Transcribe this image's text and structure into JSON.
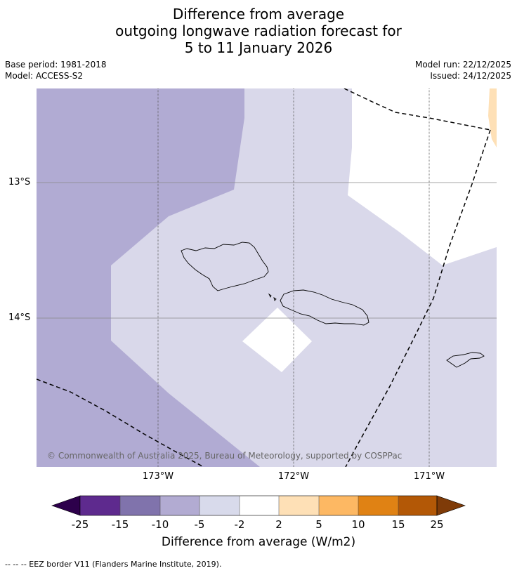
{
  "title": {
    "line1": "Difference from average",
    "line2": "outgoing longwave radiation forecast for",
    "line3": "5 to 11 January 2026"
  },
  "meta": {
    "base_period": "Base period: 1981-2018",
    "model": "Model: ACCESS-S2",
    "model_run": "Model run: 22/12/2025",
    "issued": "Issued: 24/12/2025"
  },
  "map": {
    "lat_labels": [
      "13°S",
      "14°S"
    ],
    "lon_labels": [
      "173°W",
      "172°W",
      "171°W"
    ],
    "copyright": "© Commonwealth of Australia 2025, Bureau of Meteorology, supported by COSPPac",
    "colors": {
      "class_-15_-10": "#b1abd3",
      "class_-5_-2": "#d9d8ea",
      "class_-2_2": "#ffffff",
      "class_2_5": "#fee0b6"
    }
  },
  "colorbar": {
    "ticks": [
      "-25",
      "-15",
      "-10",
      "-5",
      "-2",
      "2",
      "5",
      "10",
      "15",
      "25"
    ],
    "colors": [
      "#2d004b",
      "#5e2a8e",
      "#8073ac",
      "#b2abd2",
      "#d8daeb",
      "#ffffff",
      "#fee0b6",
      "#fdb863",
      "#e08214",
      "#b35806",
      "#7f3b08"
    ],
    "label": "Difference from average (W/m2)"
  },
  "footnote": "--  --  -- EEZ border V11 (Flanders Marine Institute, 2019)."
}
